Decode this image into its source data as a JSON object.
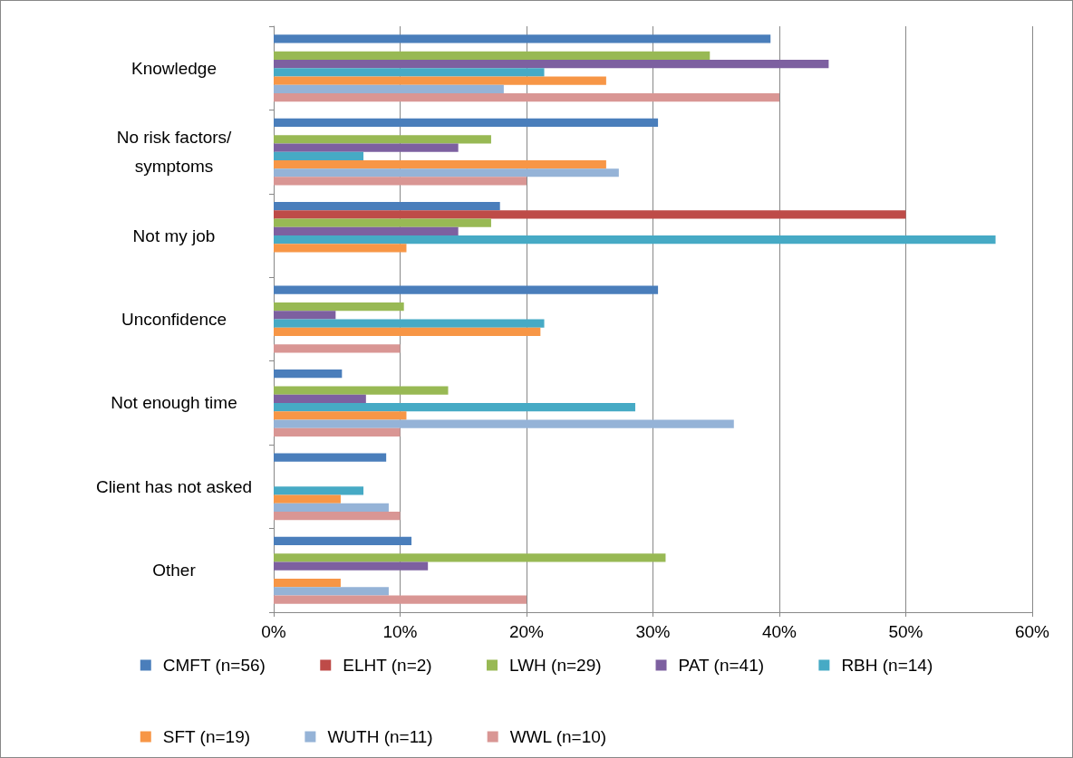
{
  "chart_data": {
    "type": "bar",
    "orientation": "horizontal",
    "categories": [
      "Knowledge",
      "No risk factors/symptoms",
      "Not my job",
      "Unconfidence",
      "Not enough time",
      "Client has not asked",
      "Other"
    ],
    "series": [
      {
        "name": "CMFT (n=56)",
        "color": "#4a7ebb",
        "values": [
          39.3,
          30.4,
          17.9,
          30.4,
          5.4,
          8.9,
          10.9
        ]
      },
      {
        "name": "ELHT (n=2)",
        "color": "#be4b48",
        "values": [
          0,
          0,
          50,
          0,
          0,
          0,
          0
        ]
      },
      {
        "name": "LWH (n=29)",
        "color": "#98b954",
        "values": [
          34.5,
          17.2,
          17.2,
          10.3,
          13.8,
          0,
          31.0
        ]
      },
      {
        "name": "PAT (n=41)",
        "color": "#7d60a0",
        "values": [
          43.9,
          14.6,
          14.6,
          4.9,
          7.3,
          0,
          12.2
        ]
      },
      {
        "name": "RBH (n=14)",
        "color": "#46aac5",
        "values": [
          21.4,
          7.1,
          57.1,
          21.4,
          28.6,
          7.1,
          0
        ]
      },
      {
        "name": "SFT (n=19)",
        "color": "#f79646",
        "values": [
          26.3,
          26.3,
          10.5,
          21.1,
          10.5,
          5.3,
          5.3
        ]
      },
      {
        "name": "WUTH (n=11)",
        "color": "#95b3d7",
        "values": [
          18.2,
          27.3,
          0,
          0,
          36.4,
          9.1,
          9.1
        ]
      },
      {
        "name": "WWL (n=10)",
        "color": "#d99694",
        "values": [
          40,
          20,
          0,
          10,
          10,
          10,
          20
        ]
      }
    ],
    "xlim": [
      0,
      60
    ],
    "xticks": [
      {
        "value": 0,
        "label": "0%"
      },
      {
        "value": 10,
        "label": "10%"
      },
      {
        "value": 20,
        "label": "20%"
      },
      {
        "value": 30,
        "label": "30%"
      },
      {
        "value": 40,
        "label": "40%"
      },
      {
        "value": 50,
        "label": "50%"
      },
      {
        "value": 60,
        "label": "60%"
      }
    ],
    "grid": "x",
    "legend": "bottom"
  }
}
